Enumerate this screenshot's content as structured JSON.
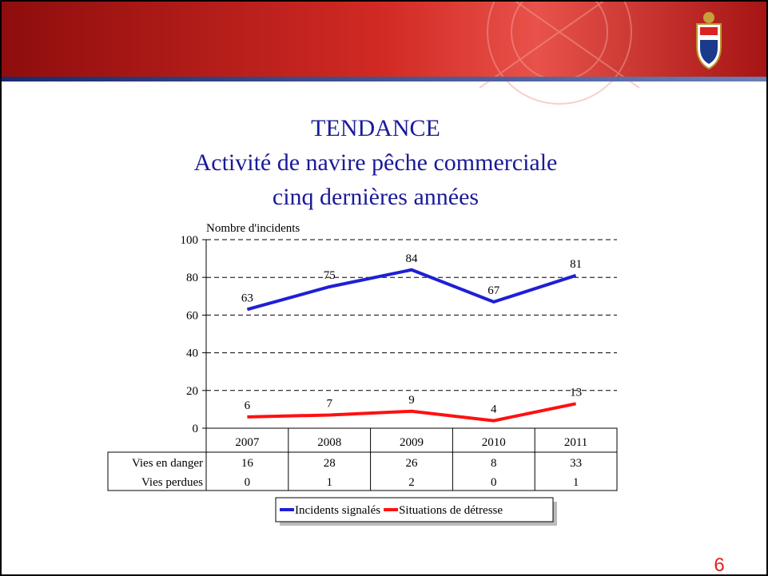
{
  "chart_data": {
    "type": "line",
    "title_lines": [
      "TENDANCE",
      "Activité de navire pêche commerciale",
      "cinq dernières années"
    ],
    "y_axis_label": "Nombre d'incidents",
    "categories": [
      "2007",
      "2008",
      "2009",
      "2010",
      "2011"
    ],
    "series": [
      {
        "name": "Incidents signalés",
        "color": "#1f1fd6",
        "values": [
          63,
          75,
          84,
          67,
          81
        ]
      },
      {
        "name": "Situations de détresse",
        "color": "#ff1010",
        "values": [
          6,
          7,
          9,
          4,
          13
        ]
      }
    ],
    "table": [
      {
        "name": "Vies en danger",
        "values": [
          16,
          28,
          26,
          8,
          33
        ]
      },
      {
        "name": "Vies perdues",
        "values": [
          0,
          1,
          2,
          0,
          1
        ]
      }
    ],
    "ylim": [
      0,
      100
    ],
    "yticks": [
      0,
      20,
      40,
      60,
      80,
      100
    ],
    "grid": "dashed",
    "page_number": "6"
  }
}
